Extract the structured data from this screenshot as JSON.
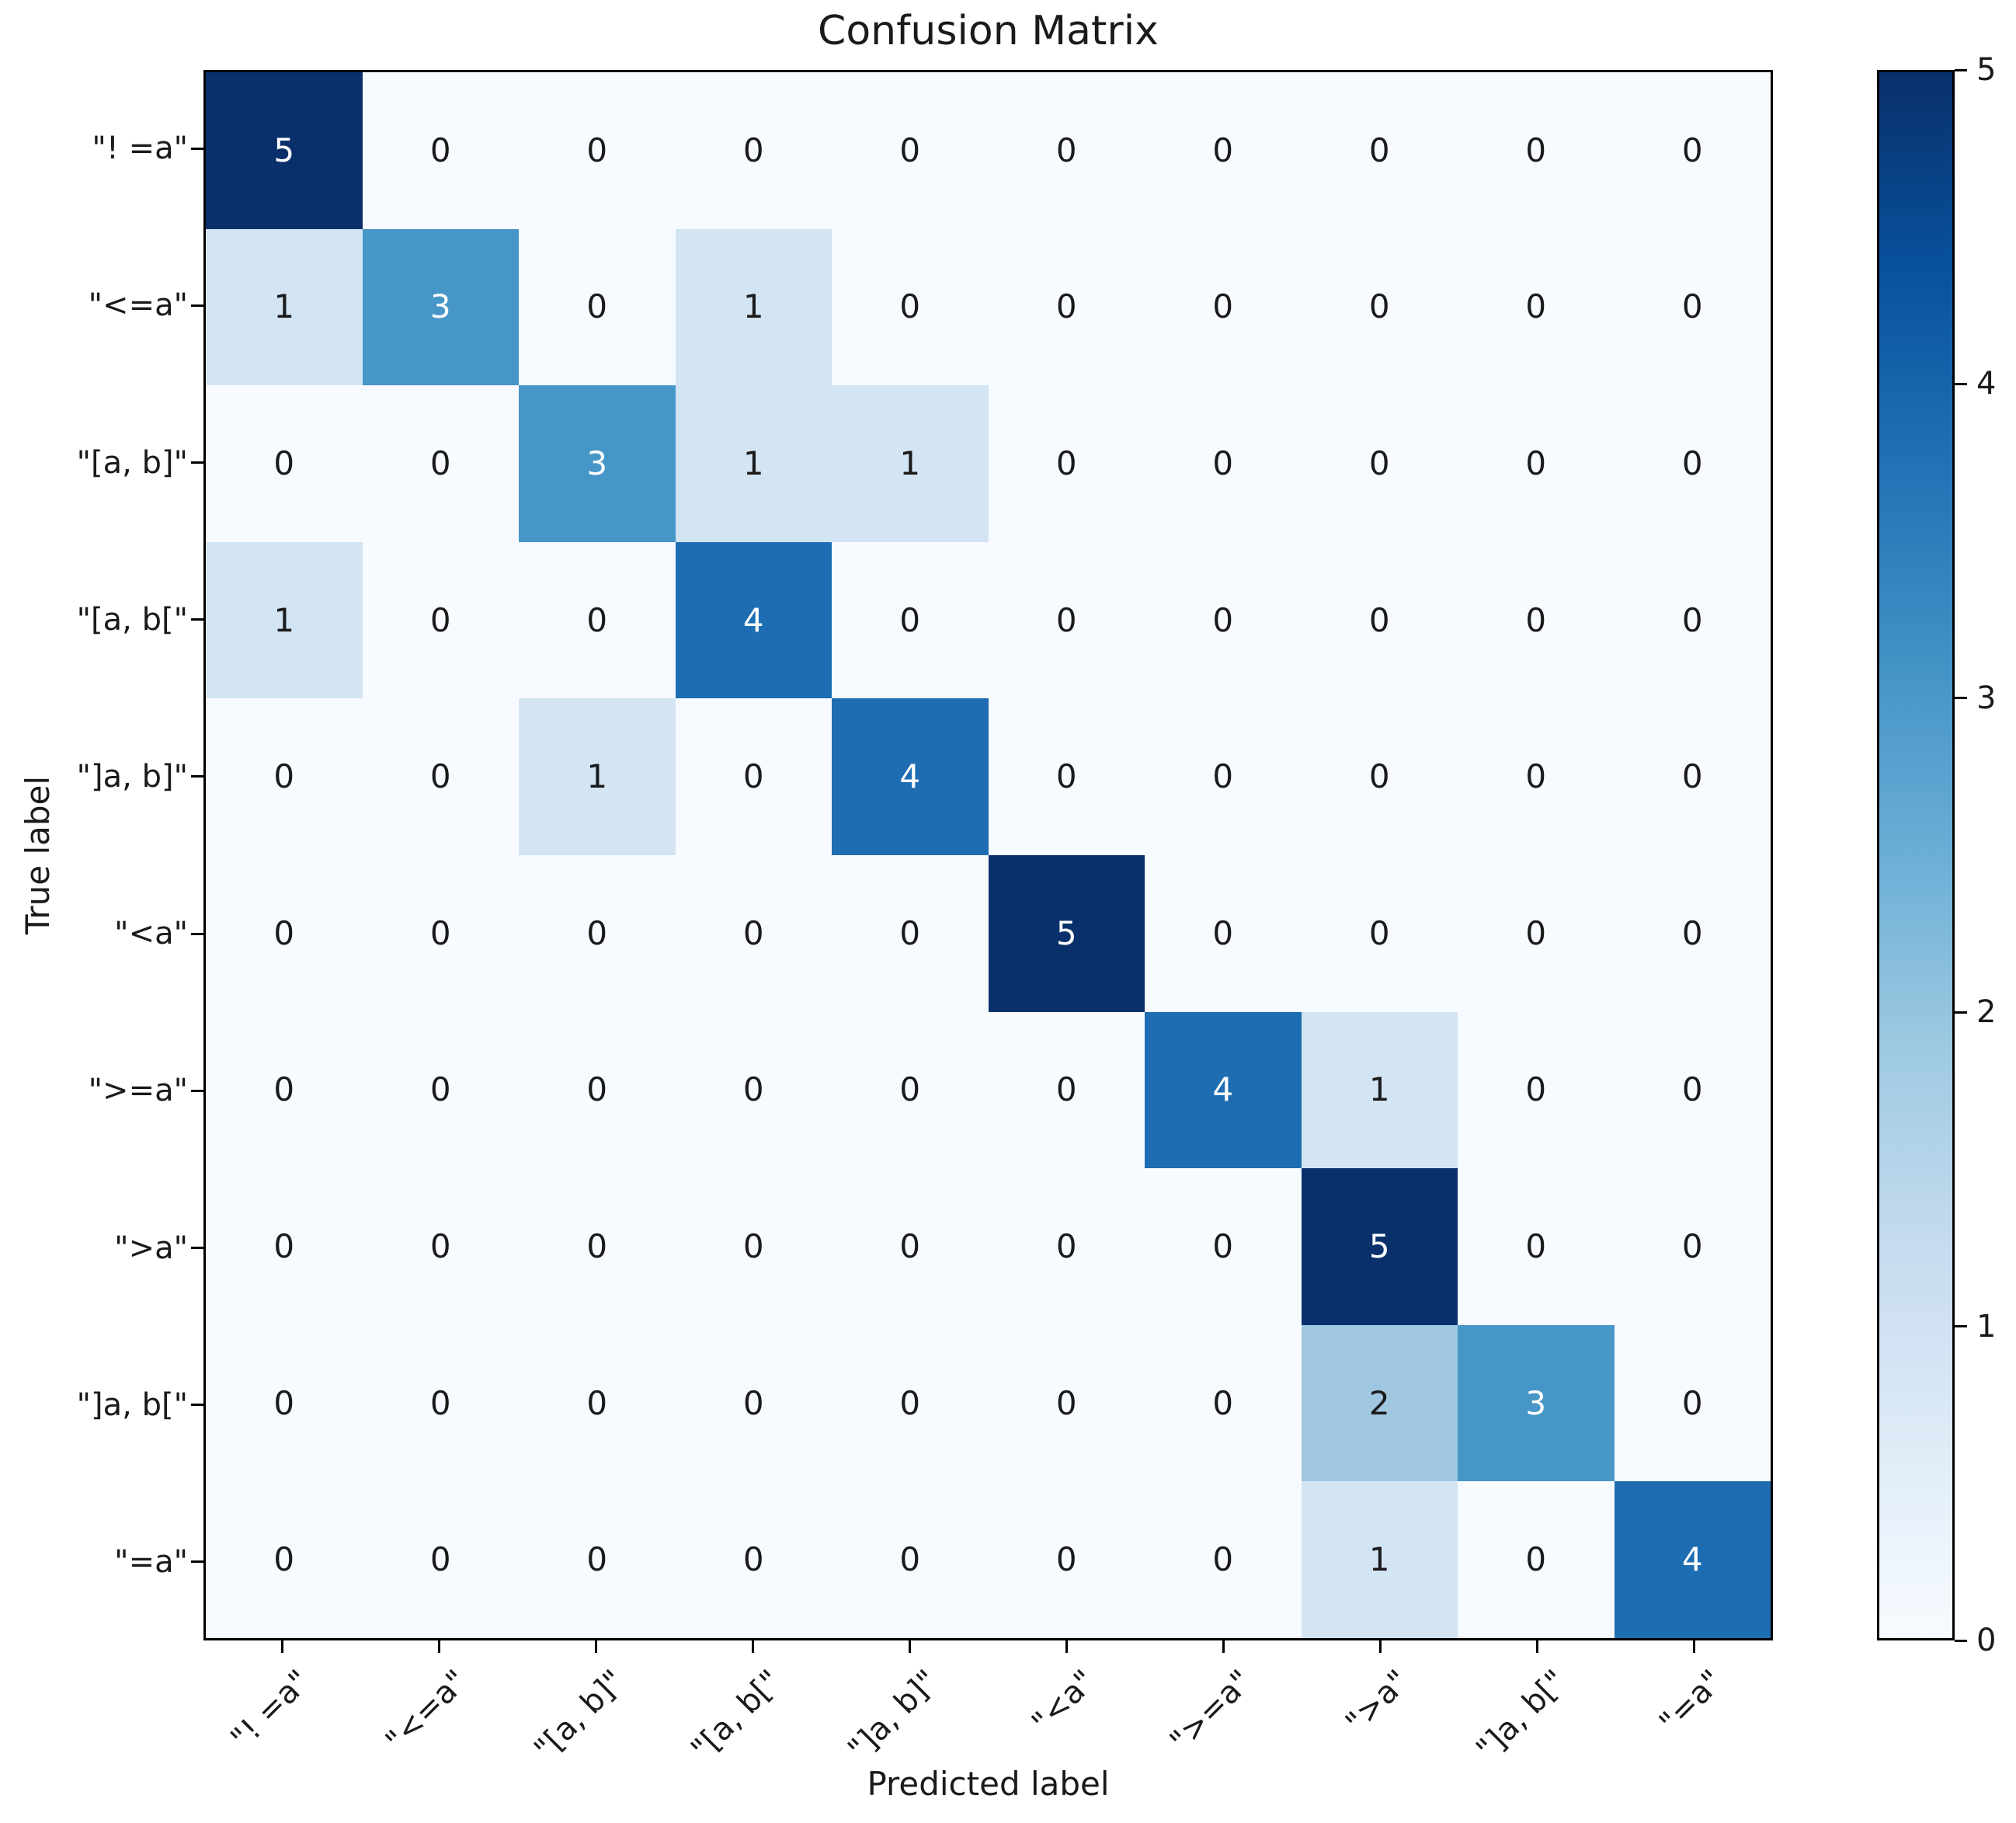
{
  "chart_data": {
    "type": "heatmap",
    "title": "Confusion Matrix",
    "xlabel": "Predicted label",
    "ylabel": "True label",
    "x_tick_labels": [
      "\"! =a\"",
      "\"<=a\"",
      "\"[a, b]\"",
      "\"[a, b[\"",
      "\"]a, b]\"",
      "\"<a\"",
      "\">=a\"",
      "\">a\"",
      "\"]a, b[\"",
      "\"=a\""
    ],
    "y_tick_labels": [
      "\"! =a\"",
      "\"<=a\"",
      "\"[a, b]\"",
      "\"[a, b[\"",
      "\"]a, b]\"",
      "\"<a\"",
      "\">=a\"",
      "\">a\"",
      "\"]a, b[\"",
      "\"=a\""
    ],
    "matrix": [
      [
        5,
        0,
        0,
        0,
        0,
        0,
        0,
        0,
        0,
        0
      ],
      [
        1,
        3,
        0,
        1,
        0,
        0,
        0,
        0,
        0,
        0
      ],
      [
        0,
        0,
        3,
        1,
        1,
        0,
        0,
        0,
        0,
        0
      ],
      [
        1,
        0,
        0,
        4,
        0,
        0,
        0,
        0,
        0,
        0
      ],
      [
        0,
        0,
        1,
        0,
        4,
        0,
        0,
        0,
        0,
        0
      ],
      [
        0,
        0,
        0,
        0,
        0,
        5,
        0,
        0,
        0,
        0
      ],
      [
        0,
        0,
        0,
        0,
        0,
        0,
        4,
        1,
        0,
        0
      ],
      [
        0,
        0,
        0,
        0,
        0,
        0,
        0,
        5,
        0,
        0
      ],
      [
        0,
        0,
        0,
        0,
        0,
        0,
        0,
        2,
        3,
        0
      ],
      [
        0,
        0,
        0,
        0,
        0,
        0,
        0,
        1,
        0,
        4
      ]
    ],
    "vmin": 0,
    "vmax": 5,
    "colormap": "Blues",
    "colorbar_ticks": [
      "5",
      "4",
      "3",
      "2",
      "1",
      "0"
    ],
    "value_colors": {
      "0": "#f7fbff",
      "1": "#d3e4f3",
      "2": "#9fc7e0",
      "3": "#4796c8",
      "4": "#1e6db2",
      "5": "#0a306b"
    },
    "colorbar_gradient": [
      "#f7fbff",
      "#deebf7",
      "#c6dbef",
      "#9ecae1",
      "#6baed6",
      "#4292c6",
      "#2171b5",
      "#08519c",
      "#08306b"
    ],
    "text_color_light": "#ffffff",
    "text_color_dark": "#1a1a1a",
    "white_text_threshold": 2.5,
    "legend_position": "right-colorbar",
    "grid": "off"
  }
}
